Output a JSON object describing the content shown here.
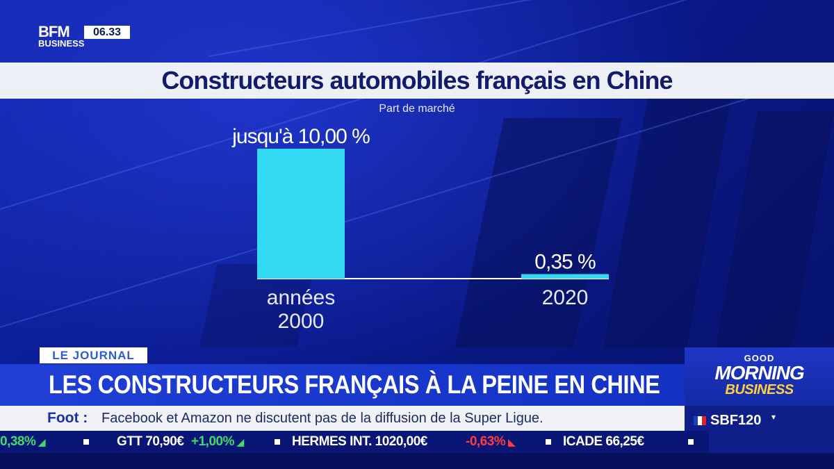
{
  "channel": {
    "logo_top": "BFM",
    "logo_bottom": "BUSINESS",
    "time": "06.33"
  },
  "title": "Constructeurs automobiles français en Chine",
  "subtitle": "Part de marché",
  "chart_data": {
    "type": "bar",
    "title": "Constructeurs automobiles français en Chine",
    "subtitle": "Part de marché",
    "categories": [
      "années 2000",
      "2020"
    ],
    "category_lines": [
      [
        "années",
        "2000"
      ],
      [
        "2020"
      ]
    ],
    "values": [
      10.0,
      0.35
    ],
    "value_labels": [
      "jusqu'à 10,00 %",
      "0,35 %"
    ],
    "unit": "%",
    "ylim": [
      0,
      10
    ],
    "bar_color": "#33d9f2",
    "grid": false,
    "legend": "none"
  },
  "lower_third": {
    "tag": "LE JOURNAL",
    "headline": "LES CONSTRUCTEURS FRANÇAIS À LA PEINE EN CHINE",
    "ticker_category": "Foot :",
    "ticker_text": "Facebook et Amazon ne discutent pas de la diffusion de la Super Ligue."
  },
  "show": {
    "good": "GOOD",
    "morning": "MORNING",
    "business": "BUSINESS"
  },
  "index": {
    "name": "SBF120",
    "arrow": "▾"
  },
  "stocks": [
    {
      "text": "0,38%",
      "color": "#3ddc6a",
      "icon": "up-arrow-icon"
    },
    {
      "text": "GTT 70,90€",
      "color": "#ffffff"
    },
    {
      "text": "+1,00%",
      "color": "#3ddc6a",
      "icon": "up-arrow-icon"
    },
    {
      "text": "HERMES INT. 1020,00€",
      "color": "#ffffff"
    },
    {
      "text": "-0,63%",
      "color": "#ff3b3b",
      "icon": "down-arrow-icon"
    },
    {
      "text": "ICADE 66,25€",
      "color": "#ffffff"
    }
  ],
  "colors": {
    "accent": "#1f3fd6",
    "title_band": "#eef0f7",
    "title_text": "#131c6b",
    "bar": "#33d9f2"
  }
}
